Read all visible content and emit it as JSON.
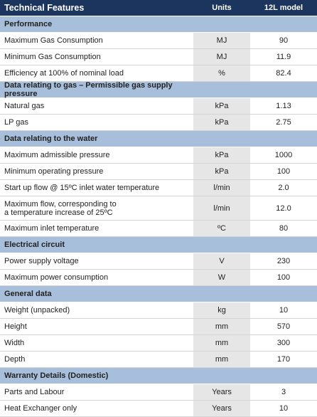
{
  "header": {
    "title": "Technical Features",
    "units": "Units",
    "model": "12L model"
  },
  "sections": [
    {
      "title": "Performance",
      "rows": [
        [
          "Maximum Gas Consumption",
          "MJ",
          "90"
        ],
        [
          "Minimum Gas Consumption",
          "MJ",
          "11.9"
        ],
        [
          "Efficiency at 100% of nominal load",
          "%",
          "82.4"
        ]
      ]
    },
    {
      "title": "Data relating to gas – Permissible gas supply pressure",
      "rows": [
        [
          "Natural gas",
          "kPa",
          "1.13"
        ],
        [
          "LP gas",
          "kPa",
          "2.75"
        ]
      ]
    },
    {
      "title": "Data relating to the water",
      "rows": [
        [
          "Maximum admissible pressure",
          "kPa",
          "1000"
        ],
        [
          "Minimum operating pressure",
          "kPa",
          "100"
        ],
        [
          "Start up flow @ 15ºC inlet water temperature",
          "l/min",
          "2.0"
        ],
        [
          "Maximum flow, corresponding to a temperature increase of 25ºC",
          "l/min",
          "12.0"
        ],
        [
          "Maximum inlet temperature",
          "ºC",
          "80"
        ]
      ]
    },
    {
      "title": "Electrical circuit",
      "rows": [
        [
          "Power supply voltage",
          "V",
          "230"
        ],
        [
          "Maximum power consumption",
          "W",
          "100"
        ]
      ]
    },
    {
      "title": "General data",
      "rows": [
        [
          "Weight (unpacked)",
          "kg",
          "10"
        ],
        [
          "Height",
          "mm",
          "570"
        ],
        [
          "Width",
          "mm",
          "300"
        ],
        [
          "Depth",
          "mm",
          "170"
        ]
      ]
    },
    {
      "title": "Warranty Details (Domestic)",
      "rows": [
        [
          "Parts and Labour",
          "Years",
          "3"
        ],
        [
          "Heat Exchanger only",
          "Years",
          "10"
        ]
      ]
    }
  ]
}
